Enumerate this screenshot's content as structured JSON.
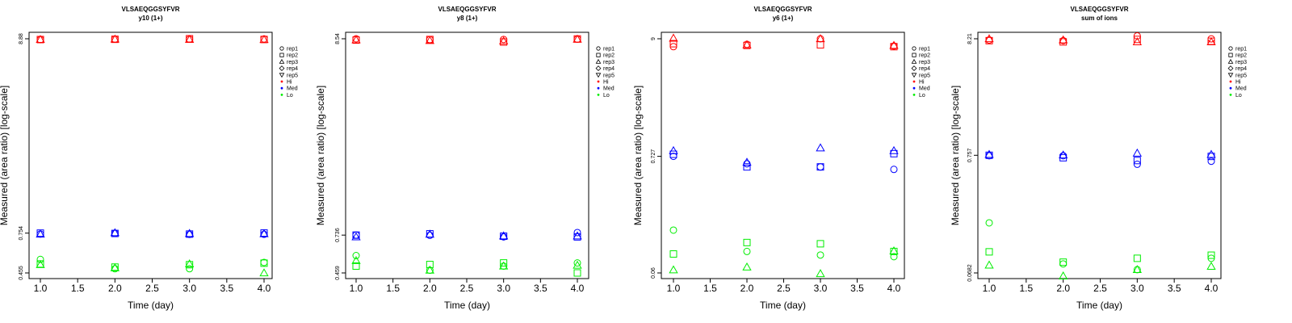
{
  "chart_data": [
    {
      "type": "scatter",
      "title": "VLSAEQGGSYFVR",
      "subtitle": "y10 (1+)",
      "xlabel": "Time (day)",
      "ylabel": "Measured (area ratio) [log-scale]",
      "log_y": true,
      "xlim": [
        0.9,
        4.1
      ],
      "ylim": [
        0.44,
        9.3
      ],
      "x_ticks": [
        "1.0",
        "1.5",
        "2.0",
        "2.5",
        "3.0",
        "3.5",
        "4.0"
      ],
      "y_ticks": [
        0.455,
        0.754,
        8.88
      ],
      "y_tick_labels": [
        "0.455",
        "0.754",
        "8.88"
      ],
      "series": [
        {
          "level": "Hi",
          "replicate": "rep1",
          "x": [
            1,
            2,
            3,
            4
          ],
          "y": [
            8.78,
            8.83,
            8.83,
            8.86
          ]
        },
        {
          "level": "Hi",
          "replicate": "rep2",
          "x": [
            1,
            2,
            3,
            4
          ],
          "y": [
            8.79,
            8.82,
            8.88,
            8.8
          ]
        },
        {
          "level": "Hi",
          "replicate": "rep3",
          "x": [
            1,
            2,
            3,
            4
          ],
          "y": [
            8.8,
            8.83,
            8.8,
            8.79
          ]
        },
        {
          "level": "Med",
          "replicate": "rep1",
          "x": [
            1,
            2,
            3,
            4
          ],
          "y": [
            0.745,
            0.752,
            0.742,
            0.743
          ]
        },
        {
          "level": "Med",
          "replicate": "rep2",
          "x": [
            1,
            2,
            3,
            4
          ],
          "y": [
            0.754,
            0.751,
            0.745,
            0.755
          ]
        },
        {
          "level": "Med",
          "replicate": "rep3",
          "x": [
            1,
            2,
            3,
            4
          ],
          "y": [
            0.744,
            0.757,
            0.75,
            0.748
          ]
        },
        {
          "level": "Lo",
          "replicate": "rep1",
          "x": [
            1,
            2,
            3,
            4
          ],
          "y": [
            0.54,
            0.48,
            0.48,
            0.52
          ]
        },
        {
          "level": "Lo",
          "replicate": "rep2",
          "x": [
            1,
            2,
            3,
            4
          ],
          "y": [
            0.51,
            0.49,
            0.505,
            0.515
          ]
        },
        {
          "level": "Lo",
          "replicate": "rep3",
          "x": [
            1,
            2,
            3,
            4
          ],
          "y": [
            0.505,
            0.485,
            0.51,
            0.455
          ]
        }
      ]
    },
    {
      "type": "scatter",
      "title": "VLSAEQGGSYFVR",
      "subtitle": "y8 (1+)",
      "xlabel": "Time (day)",
      "ylabel": "Measured (area ratio) [log-scale]",
      "log_y": true,
      "xlim": [
        0.9,
        4.1
      ],
      "ylim": [
        0.44,
        9.0
      ],
      "x_ticks": [
        "1.0",
        "1.5",
        "2.0",
        "2.5",
        "3.0",
        "3.5",
        "4.0"
      ],
      "y_ticks": [
        0.459,
        0.736,
        8.54
      ],
      "y_tick_labels": [
        "0.459",
        "0.736",
        "8.54"
      ],
      "series": [
        {
          "level": "Hi",
          "replicate": "rep1",
          "x": [
            1,
            2,
            3,
            4
          ],
          "y": [
            8.54,
            8.45,
            8.47,
            8.5
          ]
        },
        {
          "level": "Hi",
          "replicate": "rep2",
          "x": [
            1,
            2,
            3,
            4
          ],
          "y": [
            8.4,
            8.46,
            8.2,
            8.52
          ]
        },
        {
          "level": "Hi",
          "replicate": "rep3",
          "x": [
            1,
            2,
            3,
            4
          ],
          "y": [
            8.42,
            8.35,
            8.3,
            8.48
          ]
        },
        {
          "level": "Med",
          "replicate": "rep1",
          "x": [
            1,
            2,
            3,
            4
          ],
          "y": [
            0.736,
            0.734,
            0.72,
            0.76
          ]
        },
        {
          "level": "Med",
          "replicate": "rep2",
          "x": [
            1,
            2,
            3,
            4
          ],
          "y": [
            0.736,
            0.748,
            0.726,
            0.72
          ]
        },
        {
          "level": "Med",
          "replicate": "rep3",
          "x": [
            1,
            2,
            3,
            4
          ],
          "y": [
            0.72,
            0.744,
            0.728,
            0.728
          ]
        },
        {
          "level": "Lo",
          "replicate": "rep1",
          "x": [
            1,
            2,
            3,
            4
          ],
          "y": [
            0.57,
            0.475,
            0.5,
            0.52
          ]
        },
        {
          "level": "Lo",
          "replicate": "rep2",
          "x": [
            1,
            2,
            3,
            4
          ],
          "y": [
            0.5,
            0.51,
            0.52,
            0.459
          ]
        },
        {
          "level": "Lo",
          "replicate": "rep3",
          "x": [
            1,
            2,
            3,
            4
          ],
          "y": [
            0.535,
            0.475,
            0.5,
            0.505
          ]
        }
      ]
    },
    {
      "type": "scatter",
      "title": "VLSAEQGGSYFVR",
      "subtitle": "y6 (1+)",
      "xlabel": "Time (day)",
      "ylabel": "Measured (area ratio) [log-scale]",
      "log_y": true,
      "xlim": [
        0.9,
        4.1
      ],
      "ylim": [
        0.055,
        10.0
      ],
      "x_ticks": [
        "1.0",
        "1.5",
        "2.0",
        "2.5",
        "3.0",
        "3.5",
        "4.0"
      ],
      "y_ticks": [
        0.06,
        0.727,
        9
      ],
      "y_tick_labels": [
        "0.06",
        "0.727",
        "9"
      ],
      "series": [
        {
          "level": "Hi",
          "replicate": "rep1",
          "x": [
            1,
            2,
            3,
            4
          ],
          "y": [
            7.6,
            8.0,
            9.0,
            7.7
          ]
        },
        {
          "level": "Hi",
          "replicate": "rep2",
          "x": [
            1,
            2,
            3,
            4
          ],
          "y": [
            8.1,
            7.8,
            7.9,
            7.6
          ]
        },
        {
          "level": "Hi",
          "replicate": "rep3",
          "x": [
            1,
            2,
            3,
            4
          ],
          "y": [
            9.1,
            7.9,
            9.0,
            7.8
          ]
        },
        {
          "level": "Med",
          "replicate": "rep1",
          "x": [
            1,
            2,
            3,
            4
          ],
          "y": [
            0.727,
            0.62,
            0.58,
            0.55
          ]
        },
        {
          "level": "Med",
          "replicate": "rep2",
          "x": [
            1,
            2,
            3,
            4
          ],
          "y": [
            0.76,
            0.58,
            0.58,
            0.77
          ]
        },
        {
          "level": "Med",
          "replicate": "rep3",
          "x": [
            1,
            2,
            3,
            4
          ],
          "y": [
            0.82,
            0.64,
            0.87,
            0.82
          ]
        },
        {
          "level": "Lo",
          "replicate": "rep1",
          "x": [
            1,
            2,
            3,
            4
          ],
          "y": [
            0.15,
            0.095,
            0.088,
            0.085
          ]
        },
        {
          "level": "Lo",
          "replicate": "rep2",
          "x": [
            1,
            2,
            3,
            4
          ],
          "y": [
            0.09,
            0.115,
            0.112,
            0.095
          ]
        },
        {
          "level": "Lo",
          "replicate": "rep3",
          "x": [
            1,
            2,
            3,
            4
          ],
          "y": [
            0.064,
            0.068,
            0.059,
            0.096
          ]
        }
      ]
    },
    {
      "type": "scatter",
      "title": "VLSAEQGGSYFVR",
      "subtitle": "sum of ions",
      "xlabel": "Time (day)",
      "ylabel": "Measured (area ratio) [log-scale]",
      "log_y": true,
      "xlim": [
        0.9,
        4.1
      ],
      "ylim": [
        0.062,
        9.0
      ],
      "x_ticks": [
        "1.0",
        "1.5",
        "2.0",
        "2.5",
        "3.0",
        "3.5",
        "4.0"
      ],
      "y_ticks": [
        0.0682,
        0.757,
        8.21
      ],
      "y_tick_labels": [
        "0.0682",
        "0.757",
        "8.21"
      ],
      "series": [
        {
          "level": "Hi",
          "replicate": "rep1",
          "x": [
            1,
            2,
            3,
            4
          ],
          "y": [
            8.0,
            7.9,
            8.7,
            8.2
          ]
        },
        {
          "level": "Hi",
          "replicate": "rep2",
          "x": [
            1,
            2,
            3,
            4
          ],
          "y": [
            7.9,
            7.7,
            8.1,
            7.8
          ]
        },
        {
          "level": "Hi",
          "replicate": "rep3",
          "x": [
            1,
            2,
            3,
            4
          ],
          "y": [
            8.21,
            8.0,
            7.7,
            7.7
          ]
        },
        {
          "level": "Med",
          "replicate": "rep1",
          "x": [
            1,
            2,
            3,
            4
          ],
          "y": [
            0.75,
            0.75,
            0.63,
            0.67
          ]
        },
        {
          "level": "Med",
          "replicate": "rep2",
          "x": [
            1,
            2,
            3,
            4
          ],
          "y": [
            0.757,
            0.72,
            0.68,
            0.74
          ]
        },
        {
          "level": "Med",
          "replicate": "rep3",
          "x": [
            1,
            2,
            3,
            4
          ],
          "y": [
            0.77,
            0.76,
            0.79,
            0.77
          ]
        },
        {
          "level": "Lo",
          "replicate": "rep1",
          "x": [
            1,
            2,
            3,
            4
          ],
          "y": [
            0.19,
            0.082,
            0.073,
            0.092
          ]
        },
        {
          "level": "Lo",
          "replicate": "rep2",
          "x": [
            1,
            2,
            3,
            4
          ],
          "y": [
            0.105,
            0.085,
            0.092,
            0.098
          ]
        },
        {
          "level": "Lo",
          "replicate": "rep3",
          "x": [
            1,
            2,
            3,
            4
          ],
          "y": [
            0.08,
            0.064,
            0.073,
            0.078
          ]
        }
      ]
    }
  ],
  "legend": {
    "entries": [
      {
        "label": "rep1",
        "type": "shape",
        "symbol": "circle"
      },
      {
        "label": "rep2",
        "type": "shape",
        "symbol": "square"
      },
      {
        "label": "rep3",
        "type": "shape",
        "symbol": "triangle-up"
      },
      {
        "label": "rep4",
        "type": "shape",
        "symbol": "diamond"
      },
      {
        "label": "rep5",
        "type": "shape",
        "symbol": "triangle-down"
      },
      {
        "label": "Hi",
        "type": "color",
        "color": "#ff0000"
      },
      {
        "label": "Med",
        "type": "color",
        "color": "#0000ff"
      },
      {
        "label": "Lo",
        "type": "color",
        "color": "#00ee00"
      }
    ]
  },
  "colors": {
    "Hi": "#ff0000",
    "Med": "#0000ff",
    "Lo": "#00ee00"
  }
}
